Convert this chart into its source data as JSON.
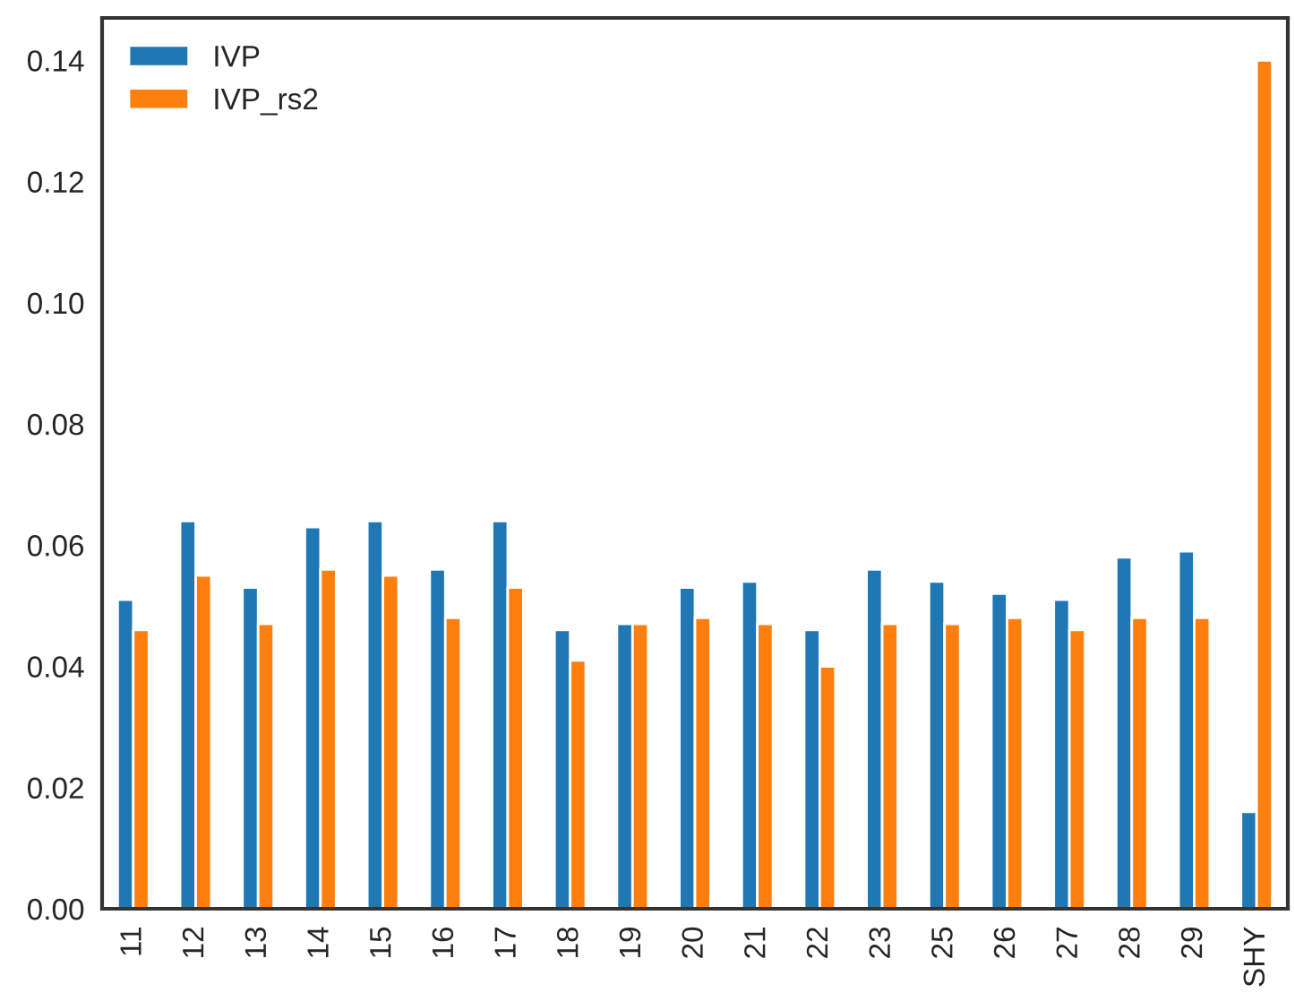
{
  "chart_data": {
    "type": "bar",
    "categories": [
      "11",
      "12",
      "13",
      "14",
      "15",
      "16",
      "17",
      "18",
      "19",
      "20",
      "21",
      "22",
      "23",
      "25",
      "26",
      "27",
      "28",
      "29",
      "SHY"
    ],
    "series": [
      {
        "name": "IVP",
        "color": "#1f77b4",
        "values": [
          0.051,
          0.064,
          0.053,
          0.063,
          0.064,
          0.056,
          0.064,
          0.046,
          0.047,
          0.053,
          0.054,
          0.046,
          0.056,
          0.054,
          0.052,
          0.051,
          0.058,
          0.059,
          0.016
        ]
      },
      {
        "name": "IVP_rs2",
        "color": "#ff7f0e",
        "values": [
          0.046,
          0.055,
          0.047,
          0.056,
          0.055,
          0.048,
          0.053,
          0.041,
          0.047,
          0.048,
          0.047,
          0.04,
          0.047,
          0.047,
          0.048,
          0.046,
          0.048,
          0.048,
          0.14
        ]
      }
    ],
    "ylim": [
      0,
      0.147
    ],
    "yticks": [
      {
        "value": 0,
        "label": "0.00"
      },
      {
        "value": 0.02,
        "label": "0.02"
      },
      {
        "value": 0.04,
        "label": "0.04"
      },
      {
        "value": 0.06,
        "label": "0.06"
      },
      {
        "value": 0.08,
        "label": "0.08"
      },
      {
        "value": 0.1,
        "label": "0.10"
      },
      {
        "value": 0.12,
        "label": "0.12"
      },
      {
        "value": 0.14,
        "label": "0.14"
      }
    ],
    "grid": false,
    "legend": "top left"
  }
}
